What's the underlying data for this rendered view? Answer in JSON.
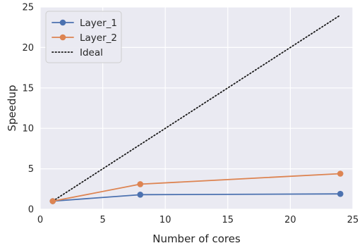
{
  "chart_data": {
    "type": "line",
    "xlabel": "Number of cores",
    "ylabel": "Speedup",
    "xlim": [
      0,
      25
    ],
    "ylim": [
      0,
      25
    ],
    "xticks": [
      0,
      5,
      10,
      15,
      20,
      25
    ],
    "yticks": [
      0,
      5,
      10,
      15,
      20,
      25
    ],
    "grid": true,
    "legend_position": "top-left",
    "series": [
      {
        "name": "Layer_1",
        "x": [
          1,
          8,
          24
        ],
        "y": [
          1.0,
          1.8,
          1.9
        ],
        "color": "#4C72B0",
        "style": "solid",
        "marker": "circle"
      },
      {
        "name": "Layer_2",
        "x": [
          1,
          8,
          24
        ],
        "y": [
          1.0,
          3.1,
          4.4
        ],
        "color": "#DD8452",
        "style": "solid",
        "marker": "circle"
      },
      {
        "name": "Ideal",
        "x": [
          1,
          24
        ],
        "y": [
          1,
          24
        ],
        "color": "#1a1a1a",
        "style": "dotted",
        "marker": "none"
      }
    ]
  }
}
